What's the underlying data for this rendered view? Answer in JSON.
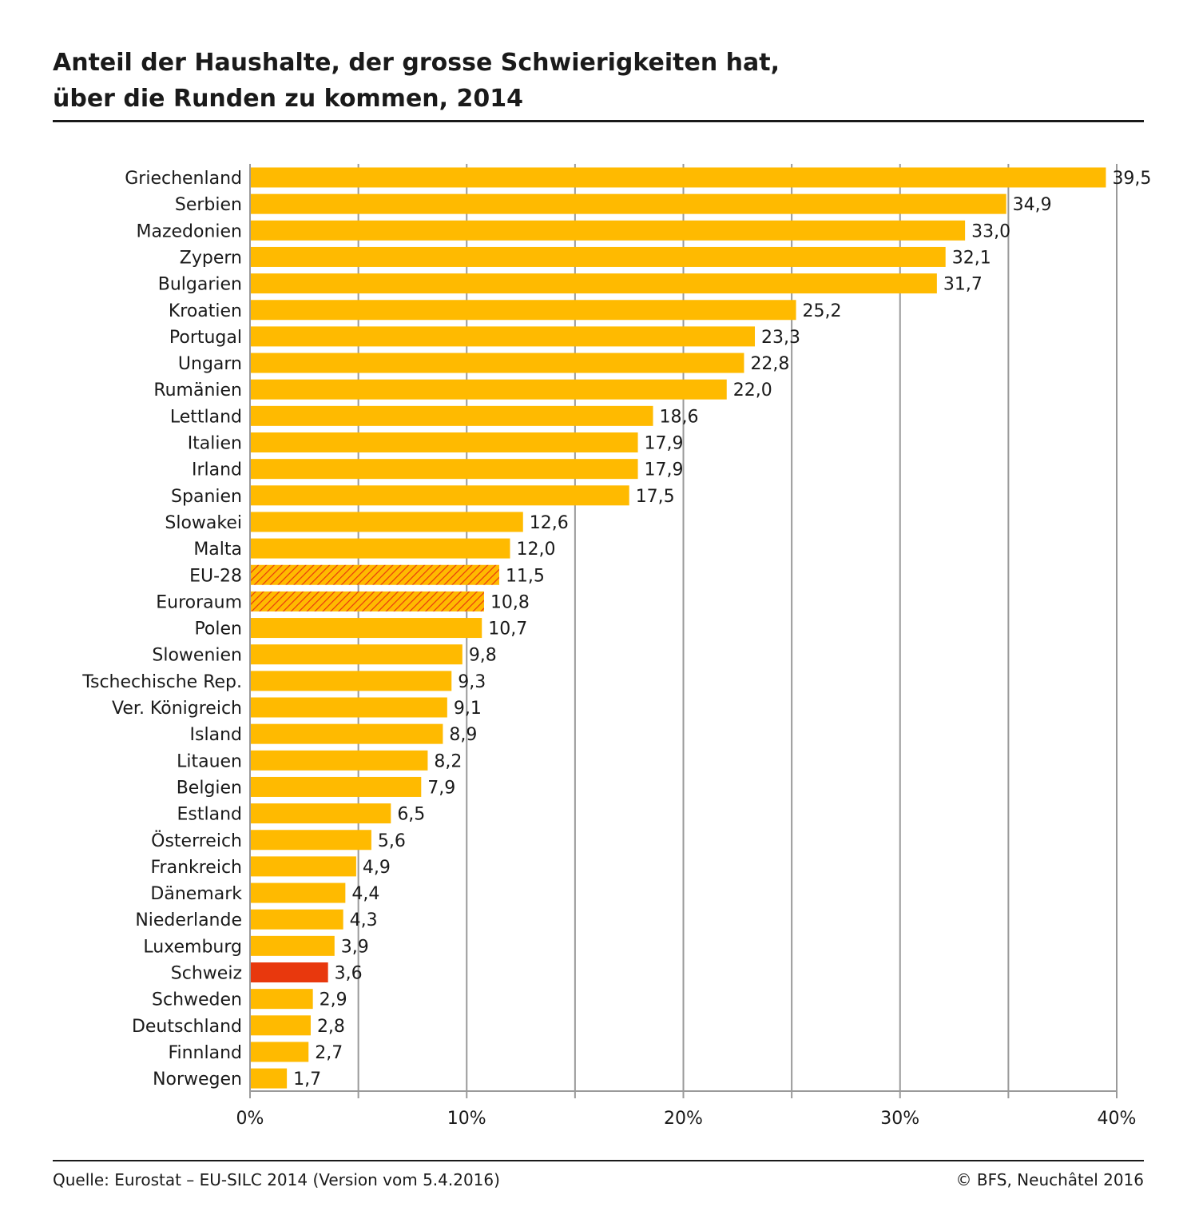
{
  "header": {
    "title_line1": "Anteil der Haushalte, der grosse Schwierigkeiten hat,",
    "title_line2": "über die Runden zu kommen, 2014"
  },
  "footer": {
    "source": "Quelle: Eurostat – EU-SILC 2014 (Version vom 5.4.2016)",
    "copyright": "© BFS, Neuchâtel 2016"
  },
  "colors": {
    "bar": "#FFBA00",
    "highlight": "#E8380D",
    "hatch": "#E8380D",
    "grid": "#9a9a9a"
  },
  "chart_data": {
    "type": "bar",
    "orientation": "horizontal",
    "title": "Anteil der Haushalte, der grosse Schwierigkeiten hat, über die Runden zu kommen, 2014",
    "xlim": [
      0,
      40
    ],
    "xticks": [
      0,
      10,
      20,
      30,
      40
    ],
    "xtick_labels": [
      "0%",
      "10%",
      "20%",
      "30%",
      "40%"
    ],
    "grid": "vertical",
    "categories": [
      "Griechenland",
      "Serbien",
      "Mazedonien",
      "Zypern",
      "Bulgarien",
      "Kroatien",
      "Portugal",
      "Ungarn",
      "Rumänien",
      "Lettland",
      "Italien",
      "Irland",
      "Spanien",
      "Slowakei",
      "Malta",
      "EU-28",
      "Euroraum",
      "Polen",
      "Slowenien",
      "Tschechische Rep.",
      "Ver. Königreich",
      "Island",
      "Litauen",
      "Belgien",
      "Estland",
      "Österreich",
      "Frankreich",
      "Dänemark",
      "Niederlande",
      "Luxemburg",
      "Schweiz",
      "Schweden",
      "Deutschland",
      "Finnland",
      "Norwegen"
    ],
    "values": [
      39.5,
      34.9,
      33.0,
      32.1,
      31.7,
      25.2,
      23.3,
      22.8,
      22.0,
      18.6,
      17.9,
      17.9,
      17.5,
      12.6,
      12.0,
      11.5,
      10.8,
      10.7,
      9.8,
      9.3,
      9.1,
      8.9,
      8.2,
      7.9,
      6.5,
      5.6,
      4.9,
      4.4,
      4.3,
      3.9,
      3.6,
      2.9,
      2.8,
      2.7,
      1.7
    ],
    "value_labels": [
      "39,5",
      "34,9",
      "33,0",
      "32,1",
      "31,7",
      "25,2",
      "23,3",
      "22,8",
      "22,0",
      "18,6",
      "17,9",
      "17,9",
      "17,5",
      "12,6",
      "12,0",
      "11,5",
      "10,8",
      "10,7",
      "9,8",
      "9,3",
      "9,1",
      "8,9",
      "8,2",
      "7,9",
      "6,5",
      "5,6",
      "4,9",
      "4,4",
      "4,3",
      "3,9",
      "3,6",
      "2,9",
      "2,8",
      "2,7",
      "1,7"
    ],
    "styles": [
      "normal",
      "normal",
      "normal",
      "normal",
      "normal",
      "normal",
      "normal",
      "normal",
      "normal",
      "normal",
      "normal",
      "normal",
      "normal",
      "normal",
      "normal",
      "hatched",
      "hatched",
      "normal",
      "normal",
      "normal",
      "normal",
      "normal",
      "normal",
      "normal",
      "normal",
      "normal",
      "normal",
      "normal",
      "normal",
      "normal",
      "highlight",
      "normal",
      "normal",
      "normal",
      "normal"
    ]
  }
}
